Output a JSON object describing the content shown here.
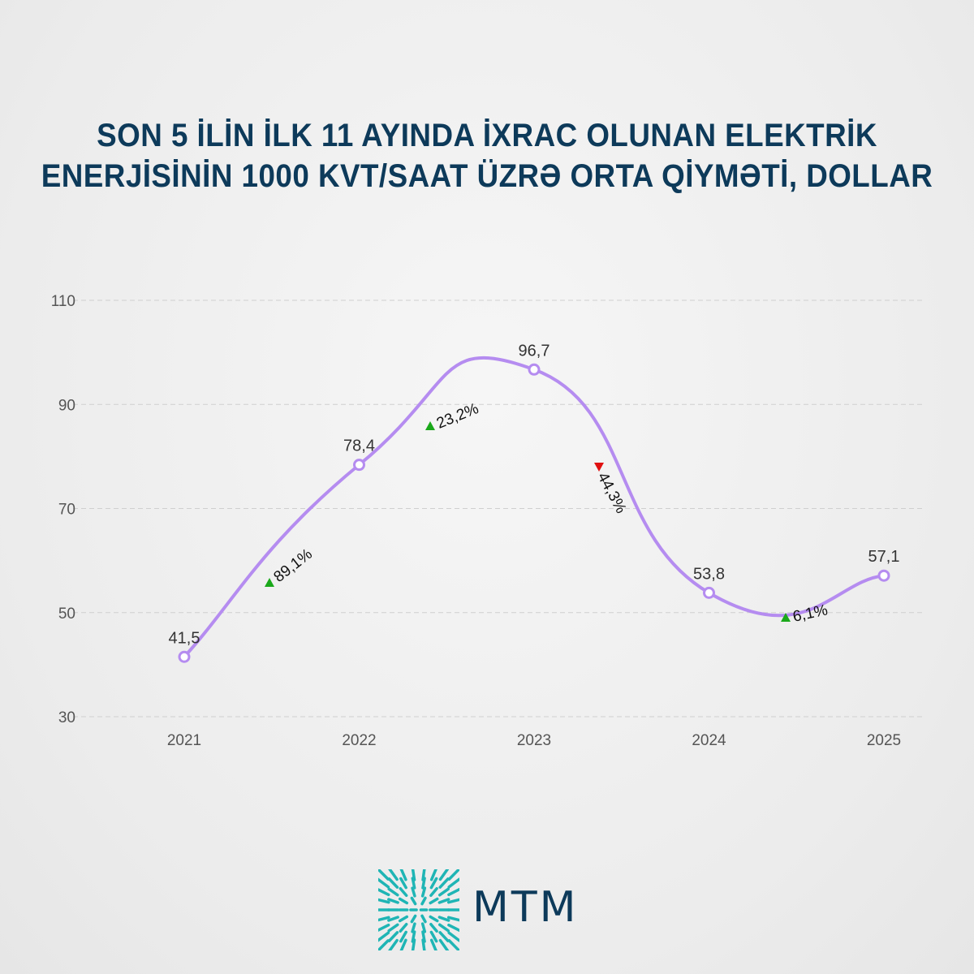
{
  "title_lines": [
    "SON 5 İLİN İLK 11 AYINDA İXRAC OLUNAN ELEKTRİK",
    "ENERJİSİNİN 1000 KVT/SAAT ÜZRƏ ORTA QİYMƏTİ, DOLLAR"
  ],
  "chart_data": {
    "type": "line",
    "title": "SON 5 İLİN İLK 11 AYINDA İXRAC OLUNAN ELEKTRİK ENERJİSİNİN 1000 KVT/SAAT ÜZRƏ ORTA QİYMƏTİ, DOLLAR",
    "categories": [
      "2021",
      "2022",
      "2023",
      "2024",
      "2025"
    ],
    "values": [
      41.5,
      78.4,
      96.7,
      53.8,
      57.1
    ],
    "value_labels": [
      "41,5",
      "78,4",
      "96,7",
      "53,8",
      "57,1"
    ],
    "changes": [
      {
        "label": "89,1%",
        "direction": "up"
      },
      {
        "label": "23,2%",
        "direction": "up"
      },
      {
        "label": "44,3%",
        "direction": "down"
      },
      {
        "label": "6,1%",
        "direction": "up"
      }
    ],
    "yticks": [
      "30",
      "50",
      "70",
      "90",
      "110"
    ],
    "ylim": [
      30,
      110
    ],
    "grid": true,
    "xlabel": "",
    "ylabel": "",
    "colors": {
      "line": "#b58cf0",
      "up": "#1aa81a",
      "down": "#e01010",
      "grid": "#cfcfcf",
      "tick": "#555555"
    }
  },
  "logo": {
    "text": "MTM",
    "color": "#0d3a5a",
    "mark_color": "#1fb5b5"
  }
}
